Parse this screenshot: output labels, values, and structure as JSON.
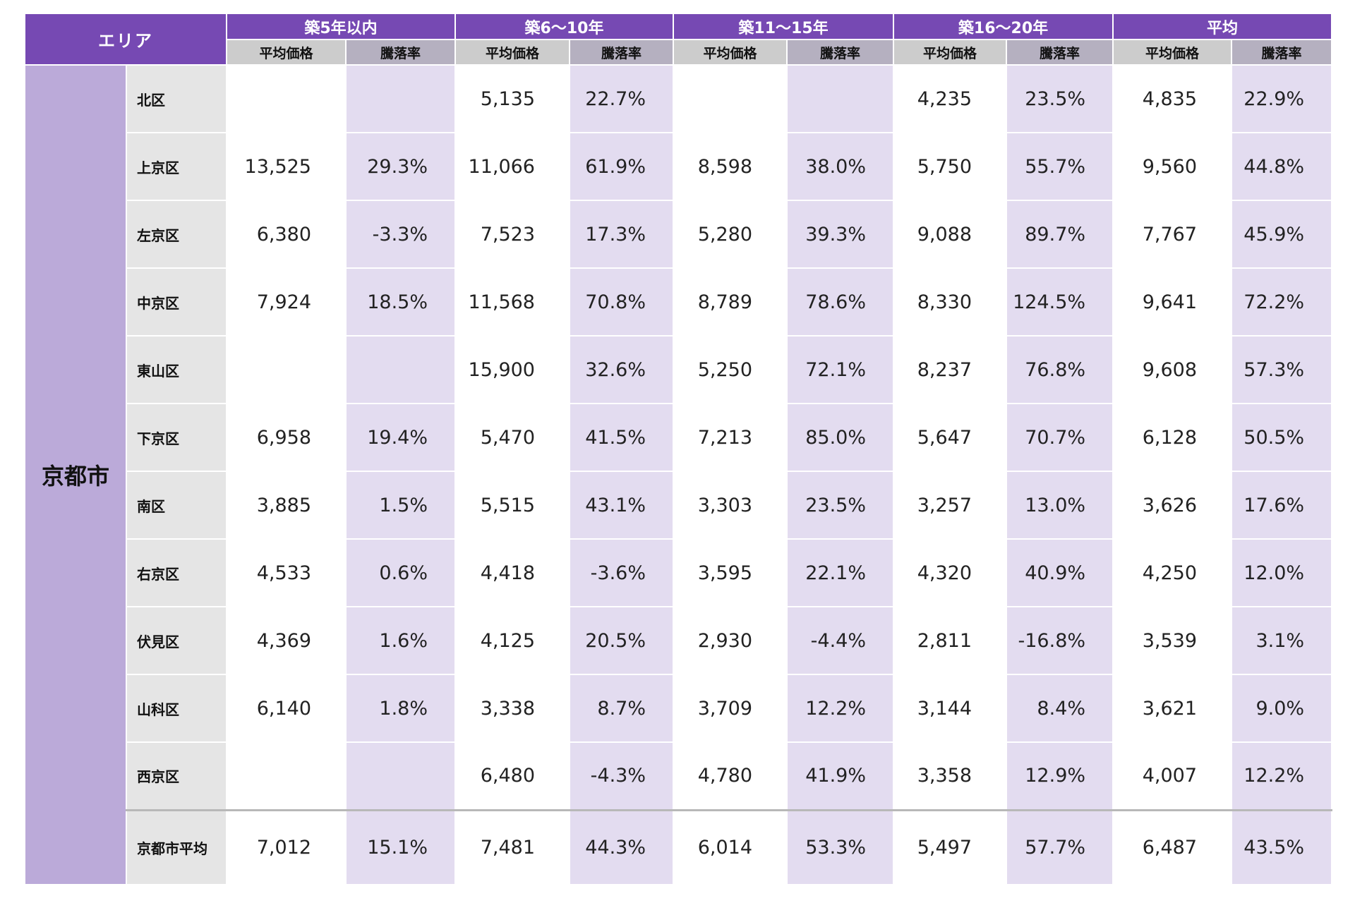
{
  "header": {
    "area_label": "エリア",
    "groups": [
      "築5年以内",
      "築6〜10年",
      "築11〜15年",
      "築16〜20年",
      "平均"
    ],
    "price_label": "平均価格",
    "rate_label": "騰落率"
  },
  "city": "京都市",
  "rows": [
    {
      "ward": "北区",
      "cells": [
        "",
        "",
        "5,135",
        "22.7%",
        "",
        "",
        "4,235",
        "23.5%",
        "4,835",
        "22.9%"
      ]
    },
    {
      "ward": "上京区",
      "cells": [
        "13,525",
        "29.3%",
        "11,066",
        "61.9%",
        "8,598",
        "38.0%",
        "5,750",
        "55.7%",
        "9,560",
        "44.8%"
      ]
    },
    {
      "ward": "左京区",
      "cells": [
        "6,380",
        "-3.3%",
        "7,523",
        "17.3%",
        "5,280",
        "39.3%",
        "9,088",
        "89.7%",
        "7,767",
        "45.9%"
      ]
    },
    {
      "ward": "中京区",
      "cells": [
        "7,924",
        "18.5%",
        "11,568",
        "70.8%",
        "8,789",
        "78.6%",
        "8,330",
        "124.5%",
        "9,641",
        "72.2%"
      ]
    },
    {
      "ward": "東山区",
      "cells": [
        "",
        "",
        "15,900",
        "32.6%",
        "5,250",
        "72.1%",
        "8,237",
        "76.8%",
        "9,608",
        "57.3%"
      ]
    },
    {
      "ward": "下京区",
      "cells": [
        "6,958",
        "19.4%",
        "5,470",
        "41.5%",
        "7,213",
        "85.0%",
        "5,647",
        "70.7%",
        "6,128",
        "50.5%"
      ]
    },
    {
      "ward": "南区",
      "cells": [
        "3,885",
        "1.5%",
        "5,515",
        "43.1%",
        "3,303",
        "23.5%",
        "3,257",
        "13.0%",
        "3,626",
        "17.6%"
      ]
    },
    {
      "ward": "右京区",
      "cells": [
        "4,533",
        "0.6%",
        "4,418",
        "-3.6%",
        "3,595",
        "22.1%",
        "4,320",
        "40.9%",
        "4,250",
        "12.0%"
      ]
    },
    {
      "ward": "伏見区",
      "cells": [
        "4,369",
        "1.6%",
        "4,125",
        "20.5%",
        "2,930",
        "-4.4%",
        "2,811",
        "-16.8%",
        "3,539",
        "3.1%"
      ]
    },
    {
      "ward": "山科区",
      "cells": [
        "6,140",
        "1.8%",
        "3,338",
        "8.7%",
        "3,709",
        "12.2%",
        "3,144",
        "8.4%",
        "3,621",
        "9.0%"
      ]
    },
    {
      "ward": "西京区",
      "cells": [
        "",
        "",
        "6,480",
        "-4.3%",
        "4,780",
        "41.9%",
        "3,358",
        "12.9%",
        "4,007",
        "12.2%"
      ]
    }
  ],
  "average": {
    "ward": "京都市平均",
    "cells": [
      "7,012",
      "15.1%",
      "7,481",
      "44.3%",
      "6,014",
      "53.3%",
      "5,497",
      "57.7%",
      "6,487",
      "43.5%"
    ]
  }
}
